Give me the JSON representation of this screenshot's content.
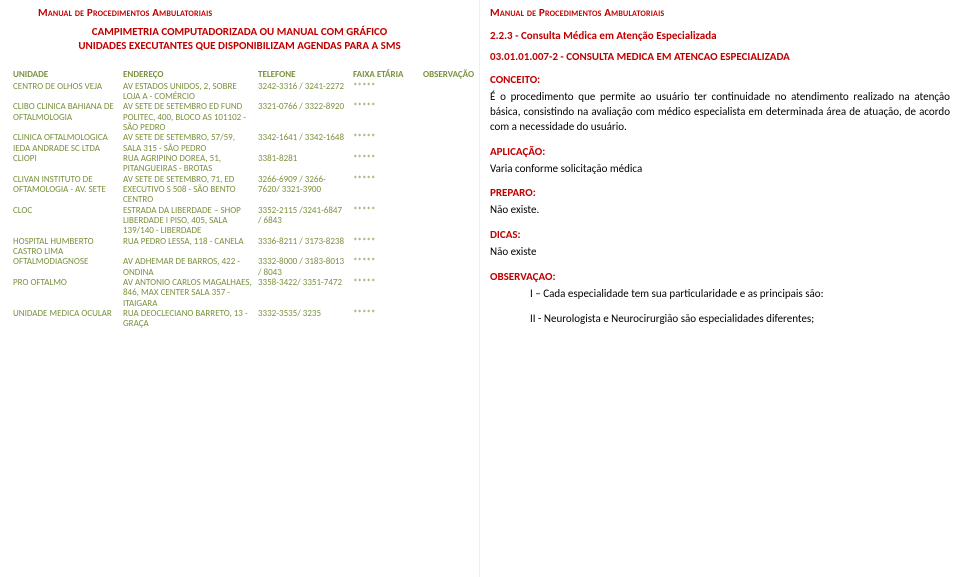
{
  "leftTitle": "Manual de Procedimentos Ambulatoriais",
  "subtitle1": "CAMPIMETRIA COMPUTADORIZADA OU MANUAL COM GRÁFICO",
  "subtitle2": "UNIDADES EXECUTANTES QUE DISPONIBILIZAM AGENDAS PARA A SMS",
  "table": {
    "headers": {
      "unit": "UNIDADE",
      "addr": "ENDEREÇO",
      "phone": "TELEFONE",
      "age": "FAIXA ETÁRIA",
      "obs": "OBSERVAÇÃO"
    },
    "rows": [
      {
        "unit": "CENTRO DE OLHOS VEJA",
        "addr": "AV ESTADOS UNIDOS, 2, SOBRE LOJA A - COMÉRCIO",
        "phone": "3242-3316 / 3241-2272",
        "age": "*****",
        "obs": ""
      },
      {
        "unit": "CLIBO CLINICA BAHIANA DE OFTALMOLOGIA",
        "addr": "AV SETE DE SETEMBRO ED FUND POLITEC, 400, BLOCO AS 101102 - SÃO PEDRO",
        "phone": "3321-0766 / 3322-8920",
        "age": "*****",
        "obs": ""
      },
      {
        "unit": "CLINICA OFTALMOLOGICA IEDA ANDRADE SC LTDA",
        "addr": "AV SETE DE SETEMBRO, 57/59, SALA 315 - SÃO PEDRO",
        "phone": "3342-1641 / 3342-1648",
        "age": "*****",
        "obs": ""
      },
      {
        "unit": "CLIOPI",
        "addr": "RUA AGRIPINO DOREA, 51, PITANGUEIRAS - BROTAS",
        "phone": "3381-8281",
        "age": "*****",
        "obs": ""
      },
      {
        "unit": "CLIVAN INSTITUTO DE OFTAMOLOGIA - AV. SETE",
        "addr": "AV SETE DE SETEMBRO, 71, ED EXECUTIVO S 508 - SÃO BENTO CENTRO",
        "phone": "3266-6909 / 3266-7620/ 3321-3900",
        "age": "*****",
        "obs": ""
      },
      {
        "unit": "CLOC",
        "addr": "ESTRADA DA LIBERDADE – SHOP LIBERDADE I PISO, 405, SALA 139/140 - LIBERDADE",
        "phone": "3352-2115 /3241-6847 / 6843",
        "age": "*****",
        "obs": ""
      },
      {
        "unit": "HOSPITAL HUMBERTO CASTRO LIMA",
        "addr": "RUA PEDRO LESSA, 118 - CANELA",
        "phone": "3336-8211 / 3173-8238",
        "age": "*****",
        "obs": ""
      },
      {
        "unit": "OFTALMODIAGNOSE",
        "addr": "AV ADHEMAR DE BARROS, 422 - ONDINA",
        "phone": "3332-8000 / 3183-8013 / 8043",
        "age": "*****",
        "obs": ""
      },
      {
        "unit": "PRO OFTALMO",
        "addr": "AV ANTONIO CARLOS MAGALHAES, 846, MAX CENTER SALA 357 - ITAIGARA",
        "phone": "3358-3422/ 3351-7472",
        "age": "*****",
        "obs": ""
      },
      {
        "unit": "UNIDADE MEDICA OCULAR",
        "addr": "RUA DEOCLECIANO BARRETO, 13 - GRAÇA",
        "phone": "3332-3535/ 3235",
        "age": "*****",
        "obs": ""
      }
    ]
  },
  "rightTitle": "Manual de Procedimentos Ambulatoriais",
  "sectionHeading": "2.2.3 - Consulta Médica em Atenção Especializada",
  "codeLine": "03.01.01.007-2 - CONSULTA MEDICA EM ATENCAO ESPECIALIZADA",
  "conceitoLabel": "CONCEITO:",
  "conceitoText": "É o procedimento que permite ao usuário ter continuidade no atendimento realizado na atenção básica, consistindo na avaliação com médico especialista em determinada área de atuação, de acordo com a necessidade do usuário.",
  "aplicacaoLabel": "APLICAÇÃO:",
  "aplicacaoText": "Varia conforme solicitação médica",
  "preparoLabel": "PREPARO:",
  "preparoText": "Não existe.",
  "dicasLabel": "DICAS:",
  "dicasText": "Não existe",
  "obsLabel": "OBSERVAÇAO:",
  "obsLine1": "I – Cada especialidade tem sua particularidade e as principais são:",
  "obsLine2": "II - Neurologista e Neurocirurgião são especialidades diferentes;"
}
